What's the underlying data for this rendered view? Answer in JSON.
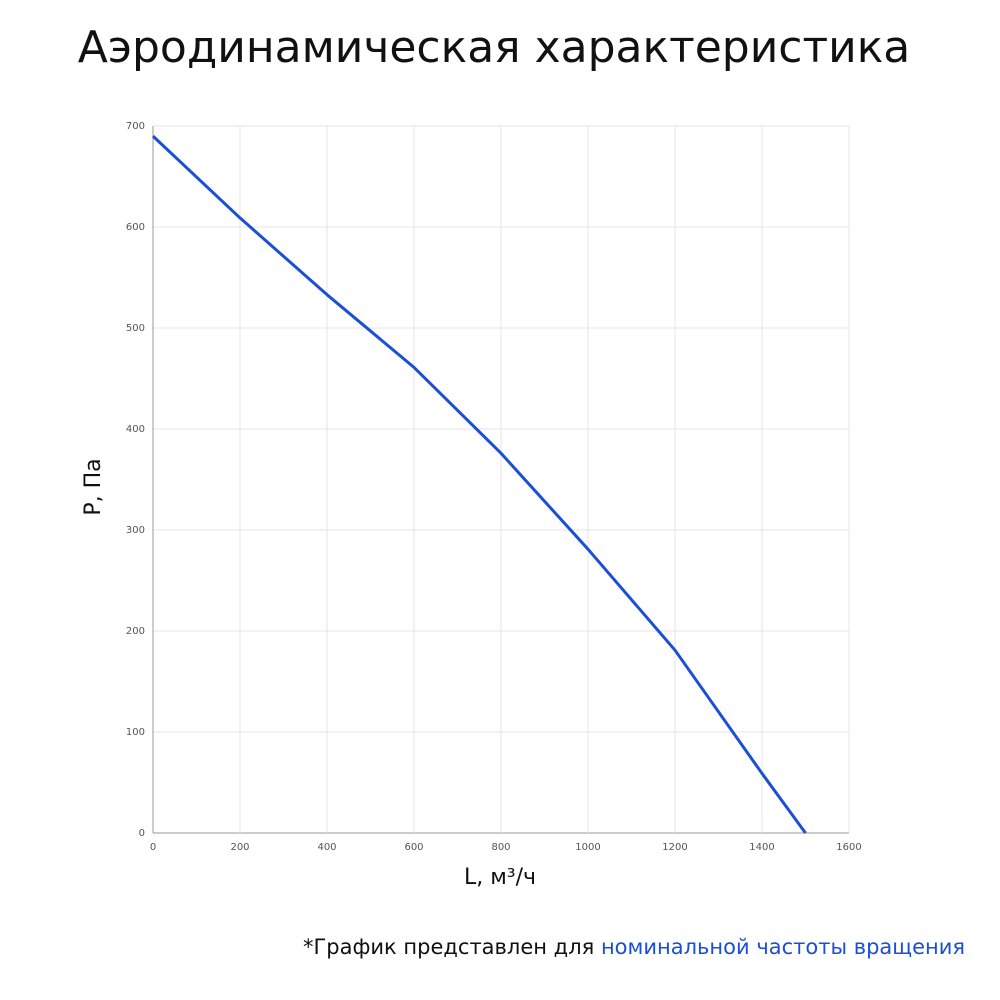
{
  "chart_data": {
    "type": "line",
    "title": "Аэродинамическая характеристика",
    "x_label": "L, м³/ч",
    "y_label": "P, Па",
    "x": [
      0,
      200,
      400,
      600,
      800,
      1000,
      1200,
      1400,
      1500
    ],
    "series": [
      {
        "name": "P",
        "color": "#1a4fd6",
        "values": [
          690,
          609,
          533,
          461,
          376,
          281,
          181,
          59,
          0
        ]
      }
    ],
    "xlim": [
      0,
      1600
    ],
    "xticks": [
      0,
      200,
      400,
      600,
      800,
      1000,
      1200,
      1400,
      1600
    ],
    "ylim": [
      0,
      700
    ],
    "yticks": [
      0,
      100,
      200,
      300,
      400,
      500,
      600,
      700
    ],
    "grid": true,
    "annotations": [
      "*График представлен для",
      "номинальной частоты вращения"
    ],
    "annotation_colors": [
      "#111111",
      "#1a4fd6"
    ]
  }
}
